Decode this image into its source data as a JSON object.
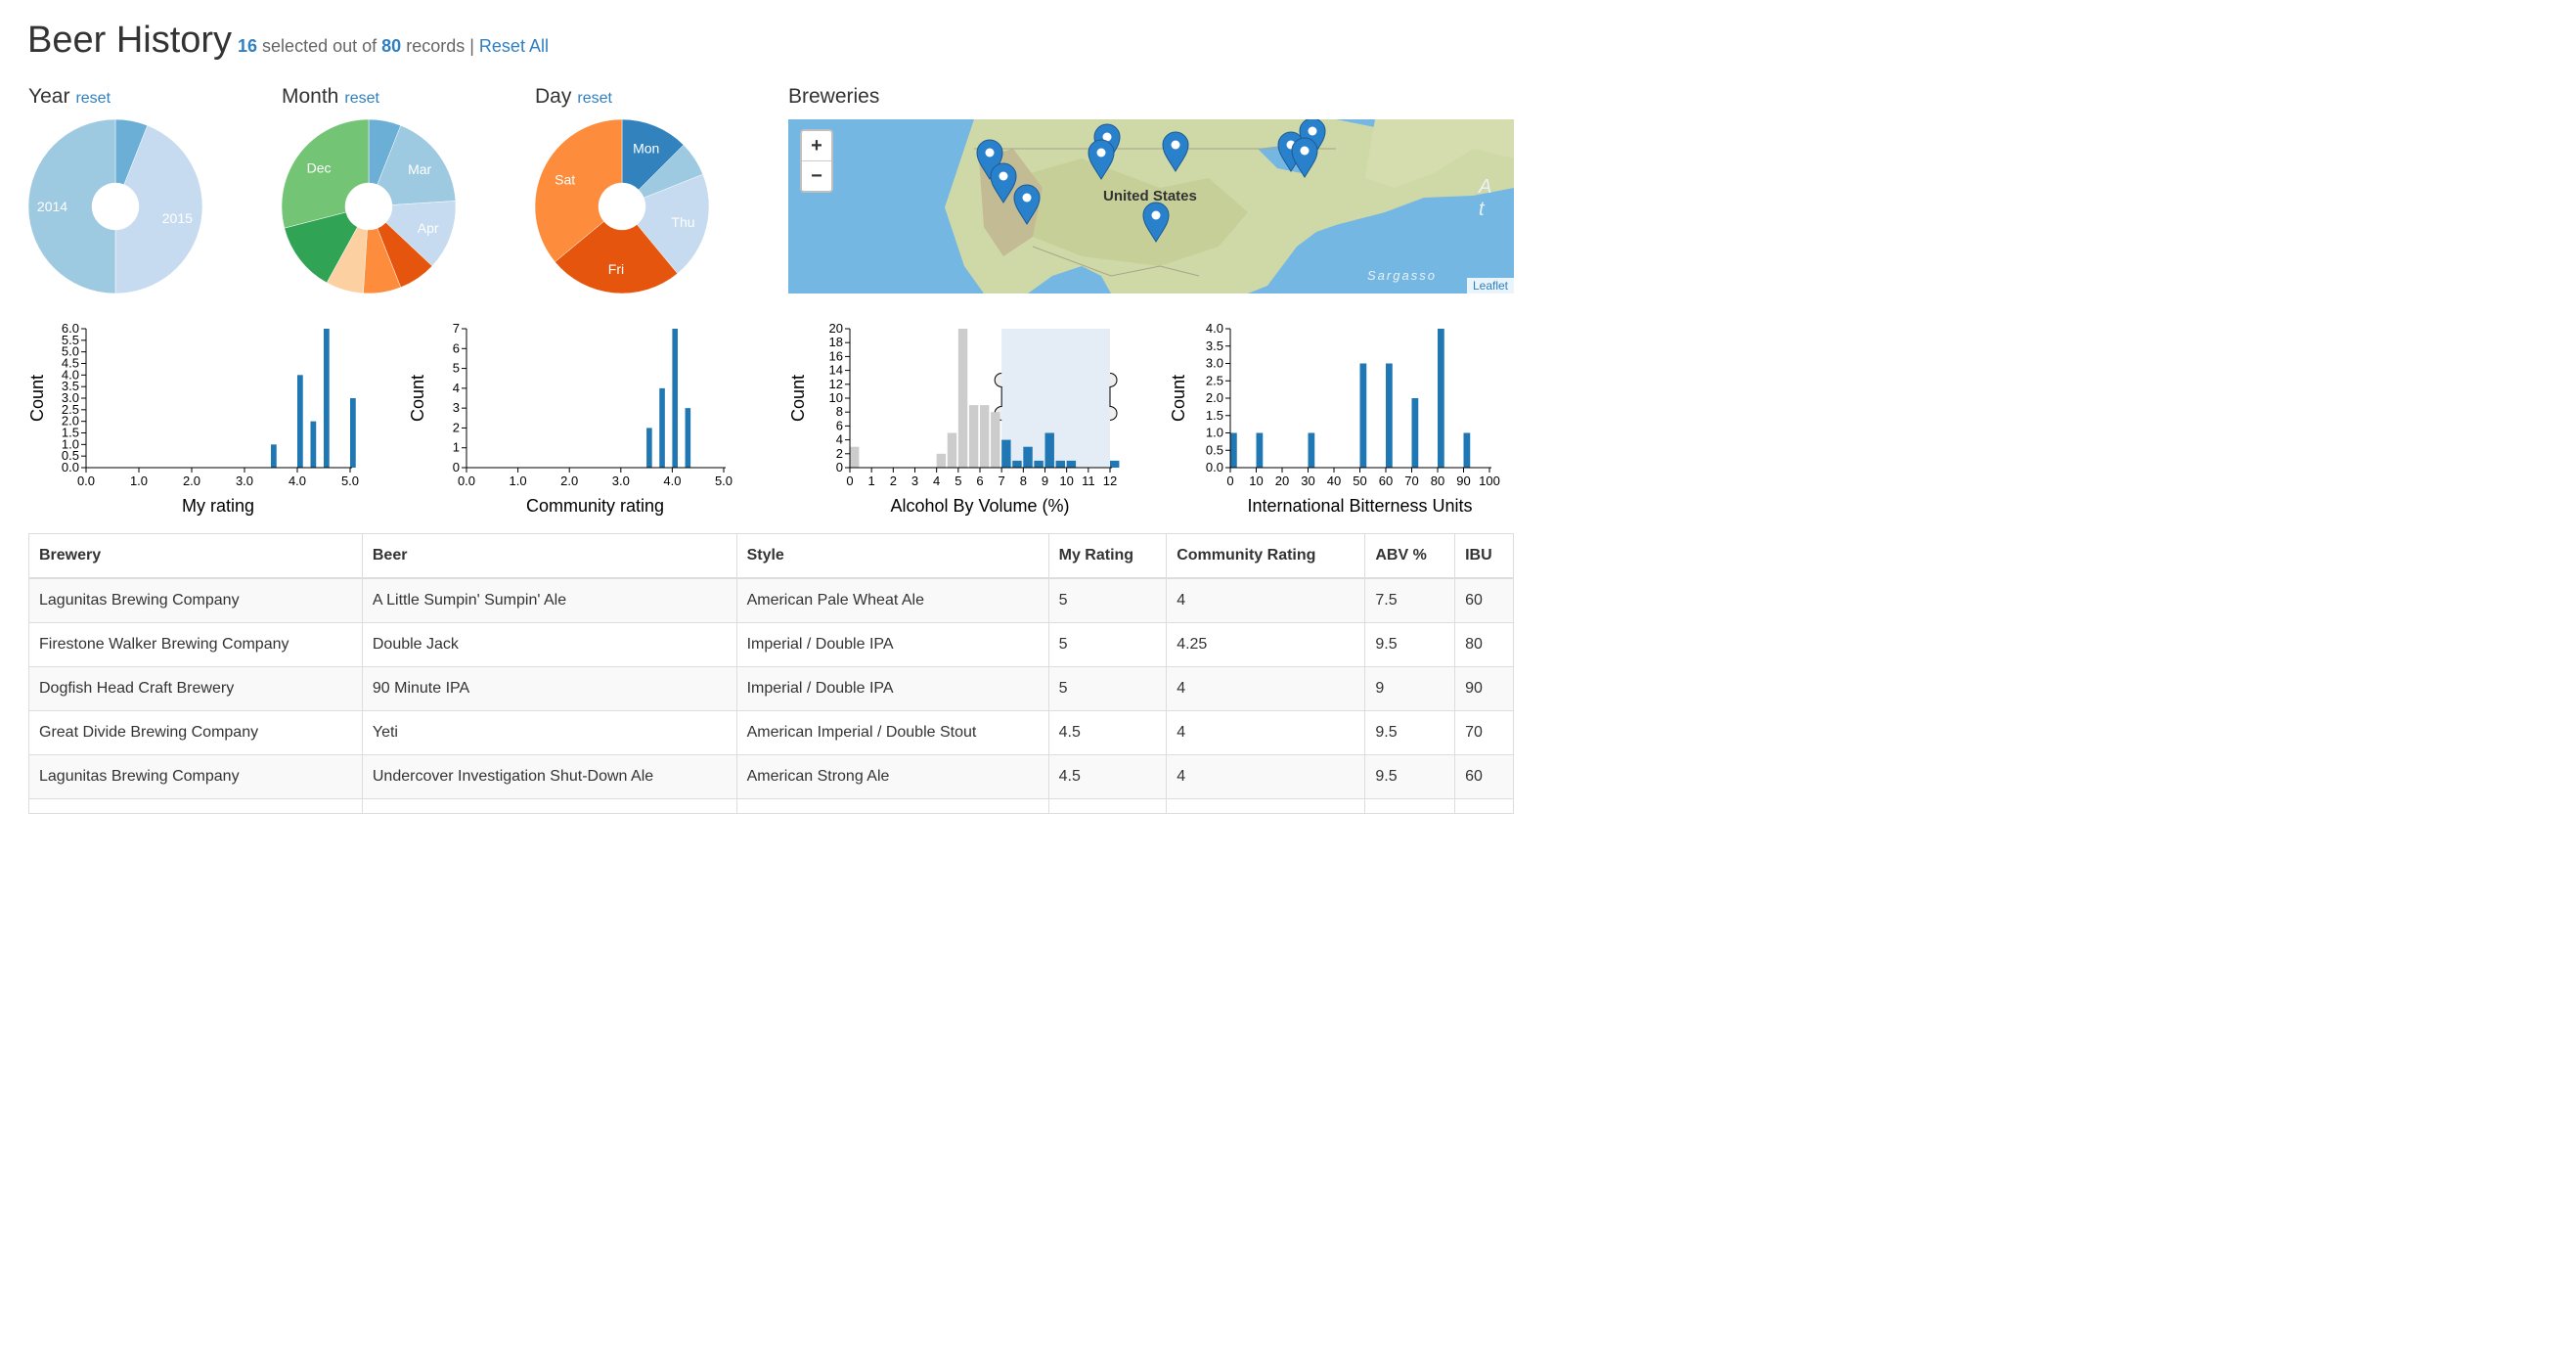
{
  "header": {
    "title": "Beer History",
    "selected": "16",
    "selected_text": "selected out of",
    "total": "80",
    "total_text": "records |",
    "reset_all": "Reset All"
  },
  "panels": {
    "year": {
      "title": "Year",
      "reset": "reset"
    },
    "month": {
      "title": "Month",
      "reset": "reset"
    },
    "day": {
      "title": "Day",
      "reset": "reset"
    },
    "breweries": {
      "title": "Breweries"
    }
  },
  "map": {
    "zoom_in": "+",
    "zoom_out": "−",
    "label_country": "United States",
    "label_sea": "Sargasso",
    "label_ocean": "A t",
    "attribution": "Leaflet",
    "marker_count": 11,
    "colors": {
      "water": "#75b7e3",
      "land": "#cfd9a8",
      "marker": "#2a81cb"
    }
  },
  "chart_data": [
    {
      "type": "pie",
      "name": "Year",
      "labels": [
        "",
        "2015",
        "2014"
      ],
      "values": [
        6,
        44,
        50
      ],
      "colors": [
        "#6baed6",
        "#c6dbef",
        "#9ecae1"
      ]
    },
    {
      "type": "pie",
      "name": "Month",
      "labels": [
        "",
        "Mar",
        "Apr",
        "",
        "",
        "",
        "",
        "Dec"
      ],
      "values": [
        6,
        18,
        13,
        7,
        7,
        7,
        13,
        29
      ],
      "colors": [
        "#6baed6",
        "#9ecae1",
        "#c6dbef",
        "#e6550d",
        "#fd8d3c",
        "#fdd0a2",
        "#31a354",
        "#74c476"
      ]
    },
    {
      "type": "pie",
      "name": "Day",
      "labels": [
        "Mon",
        "",
        "Thu",
        "Fri",
        "Sat"
      ],
      "values": [
        12.5,
        6.5,
        20,
        25,
        36
      ],
      "colors": [
        "#3182bd",
        "#9ecae1",
        "#c6dbef",
        "#e6550d",
        "#fd8d3c"
      ]
    },
    {
      "type": "bar",
      "xlabel": "My rating",
      "ylabel": "Count",
      "xlim": [
        0,
        5
      ],
      "ylim": [
        0,
        6
      ],
      "xticks": [
        "0.0",
        "1.0",
        "2.0",
        "3.0",
        "4.0",
        "5.0"
      ],
      "yticks": [
        "0.0",
        "0.5",
        "1.0",
        "1.5",
        "2.0",
        "2.5",
        "3.0",
        "3.5",
        "4.0",
        "4.5",
        "5.0",
        "5.5",
        "6.0"
      ],
      "bin_width": 0.125,
      "x": [
        3.5,
        4.0,
        4.25,
        4.5,
        5.0
      ],
      "values": [
        1,
        4,
        2,
        6,
        3
      ]
    },
    {
      "type": "bar",
      "xlabel": "Community rating",
      "ylabel": "Count",
      "xlim": [
        0,
        5
      ],
      "ylim": [
        0,
        7
      ],
      "xticks": [
        "0.0",
        "1.0",
        "2.0",
        "3.0",
        "4.0",
        "5.0"
      ],
      "yticks": [
        "0",
        "1",
        "2",
        "3",
        "4",
        "5",
        "6",
        "7"
      ],
      "bin_width": 0.125,
      "x": [
        3.5,
        3.75,
        4.0,
        4.25
      ],
      "values": [
        2,
        4,
        7,
        3
      ]
    },
    {
      "type": "bar",
      "xlabel": "Alcohol By Volume (%)",
      "ylabel": "Count",
      "xlim": [
        0,
        12
      ],
      "ylim": [
        0,
        20
      ],
      "xticks": [
        "0",
        "1",
        "2",
        "3",
        "4",
        "5",
        "6",
        "7",
        "8",
        "9",
        "10",
        "11",
        "12"
      ],
      "yticks": [
        "0",
        "2",
        "4",
        "6",
        "8",
        "10",
        "12",
        "14",
        "16",
        "18",
        "20"
      ],
      "bin_width": 0.5,
      "brush": [
        7,
        12
      ],
      "x": [
        0,
        4,
        4.5,
        5,
        5.5,
        6,
        6.5,
        7,
        7.5,
        8,
        8.5,
        9,
        9.5,
        10,
        12
      ],
      "values": [
        3,
        2,
        5,
        20,
        9,
        9,
        8,
        4,
        1,
        3,
        1,
        5,
        1,
        1,
        1
      ]
    },
    {
      "type": "bar",
      "xlabel": "International Bitterness Units",
      "ylabel": "Count",
      "xlim": [
        0,
        100
      ],
      "ylim": [
        0,
        4
      ],
      "xticks": [
        "0",
        "10",
        "20",
        "30",
        "40",
        "50",
        "60",
        "70",
        "80",
        "90",
        "100"
      ],
      "yticks": [
        "0.0",
        "0.5",
        "1.0",
        "1.5",
        "2.0",
        "2.5",
        "3.0",
        "3.5",
        "4.0"
      ],
      "bin_width": 3,
      "x": [
        0,
        10,
        30,
        50,
        60,
        70,
        80,
        90
      ],
      "values": [
        1,
        1,
        1,
        3,
        3,
        2,
        4,
        1
      ]
    }
  ],
  "table": {
    "headers": [
      "Brewery",
      "Beer",
      "Style",
      "My Rating",
      "Community Rating",
      "ABV %",
      "IBU"
    ],
    "rows": [
      [
        "Lagunitas Brewing Company",
        "A Little Sumpin' Sumpin' Ale",
        "American Pale Wheat Ale",
        "5",
        "4",
        "7.5",
        "60"
      ],
      [
        "Firestone Walker Brewing Company",
        "Double Jack",
        "Imperial / Double IPA",
        "5",
        "4.25",
        "9.5",
        "80"
      ],
      [
        "Dogfish Head Craft Brewery",
        "90 Minute IPA",
        "Imperial / Double IPA",
        "5",
        "4",
        "9",
        "90"
      ],
      [
        "Great Divide Brewing Company",
        "Yeti",
        "American Imperial / Double Stout",
        "4.5",
        "4",
        "9.5",
        "70"
      ],
      [
        "Lagunitas Brewing Company",
        "Undercover Investigation Shut-Down Ale",
        "American Strong Ale",
        "4.5",
        "4",
        "9.5",
        "60"
      ]
    ]
  },
  "colors": {
    "accent": "#2f7fc1",
    "bar": "#1f77b4",
    "bar_filtered": "#cccccc",
    "brush": "#e4ecf5"
  }
}
